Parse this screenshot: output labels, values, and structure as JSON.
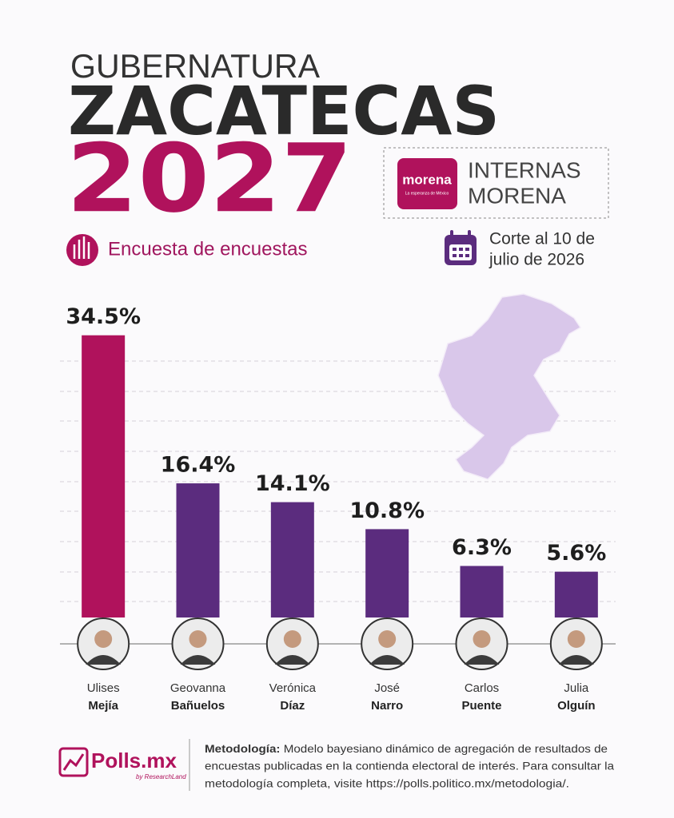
{
  "header": {
    "kicker": "GUBERNATURA",
    "title": "ZACATECAS",
    "year": "2027",
    "survey": "Encuesta de encuestas",
    "party_logo": "morena",
    "party_slogan": "La esperanza de México",
    "badge": [
      "INTERNAS",
      "MORENA"
    ],
    "cutoff": [
      "Corte al 10 de",
      "julio de 2026"
    ]
  },
  "chart_data": {
    "type": "bar",
    "categories": [
      [
        "Ulises",
        "Mejía"
      ],
      [
        "Geovanna",
        "Bañuelos"
      ],
      [
        "Verónica",
        "Díaz"
      ],
      [
        "José",
        "Narro"
      ],
      [
        "Carlos",
        "Puente"
      ],
      [
        "Julia",
        "Olguín"
      ]
    ],
    "values": [
      34.5,
      16.4,
      14.1,
      10.8,
      6.3,
      5.6
    ],
    "value_labels": [
      "34.5%",
      "16.4%",
      "14.1%",
      "10.8%",
      "6.3%",
      "5.6%"
    ],
    "colors": [
      "#b0125c",
      "#5b2c7e",
      "#5b2c7e",
      "#5b2c7e",
      "#5b2c7e",
      "#5b2c7e"
    ],
    "ylim": [
      0,
      40
    ]
  },
  "footer": {
    "brand": "Polls.mx",
    "brand_by": "by ResearchLand",
    "methodology_label": "Metodología:",
    "methodology_lines": [
      "Modelo bayesiano dinámico de agregación de resultados de",
      "encuestas publicadas en la contienda electoral de interés. Para consultar la",
      "metodología completa, visite https://polls.politico.mx/metodologia/."
    ]
  }
}
